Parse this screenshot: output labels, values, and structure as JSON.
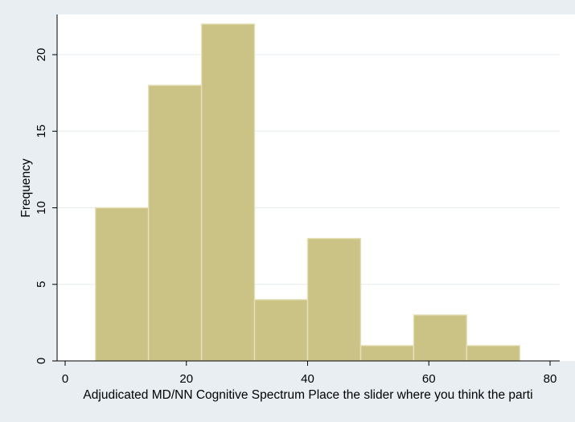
{
  "chart_data": {
    "type": "bar",
    "title": "",
    "xlabel": "Adjudicated MD/NN Cognitive Spectrum  Place the slider where you think the parti",
    "ylabel": "Frequency",
    "xlim": [
      0,
      80
    ],
    "ylim": [
      0,
      22
    ],
    "x_ticks": [
      0,
      20,
      40,
      60,
      80
    ],
    "y_ticks": [
      0,
      5,
      10,
      15,
      20
    ],
    "bins": [
      {
        "start": 5.0,
        "end": 13.75,
        "value": 10
      },
      {
        "start": 13.75,
        "end": 22.5,
        "value": 18
      },
      {
        "start": 22.5,
        "end": 31.25,
        "value": 22
      },
      {
        "start": 31.25,
        "end": 40.0,
        "value": 4
      },
      {
        "start": 40.0,
        "end": 48.75,
        "value": 8
      },
      {
        "start": 48.75,
        "end": 57.5,
        "value": 1
      },
      {
        "start": 57.5,
        "end": 66.25,
        "value": 3
      },
      {
        "start": 66.25,
        "end": 75.0,
        "value": 1
      }
    ],
    "grid": true,
    "legend": "none"
  },
  "colors": {
    "background": "#e8eef2",
    "plot_background": "#ffffff",
    "bar_fill": "#cbc386",
    "bar_stroke": "#e6e0b8",
    "grid": "#e6edf1",
    "axis": "#000000"
  }
}
